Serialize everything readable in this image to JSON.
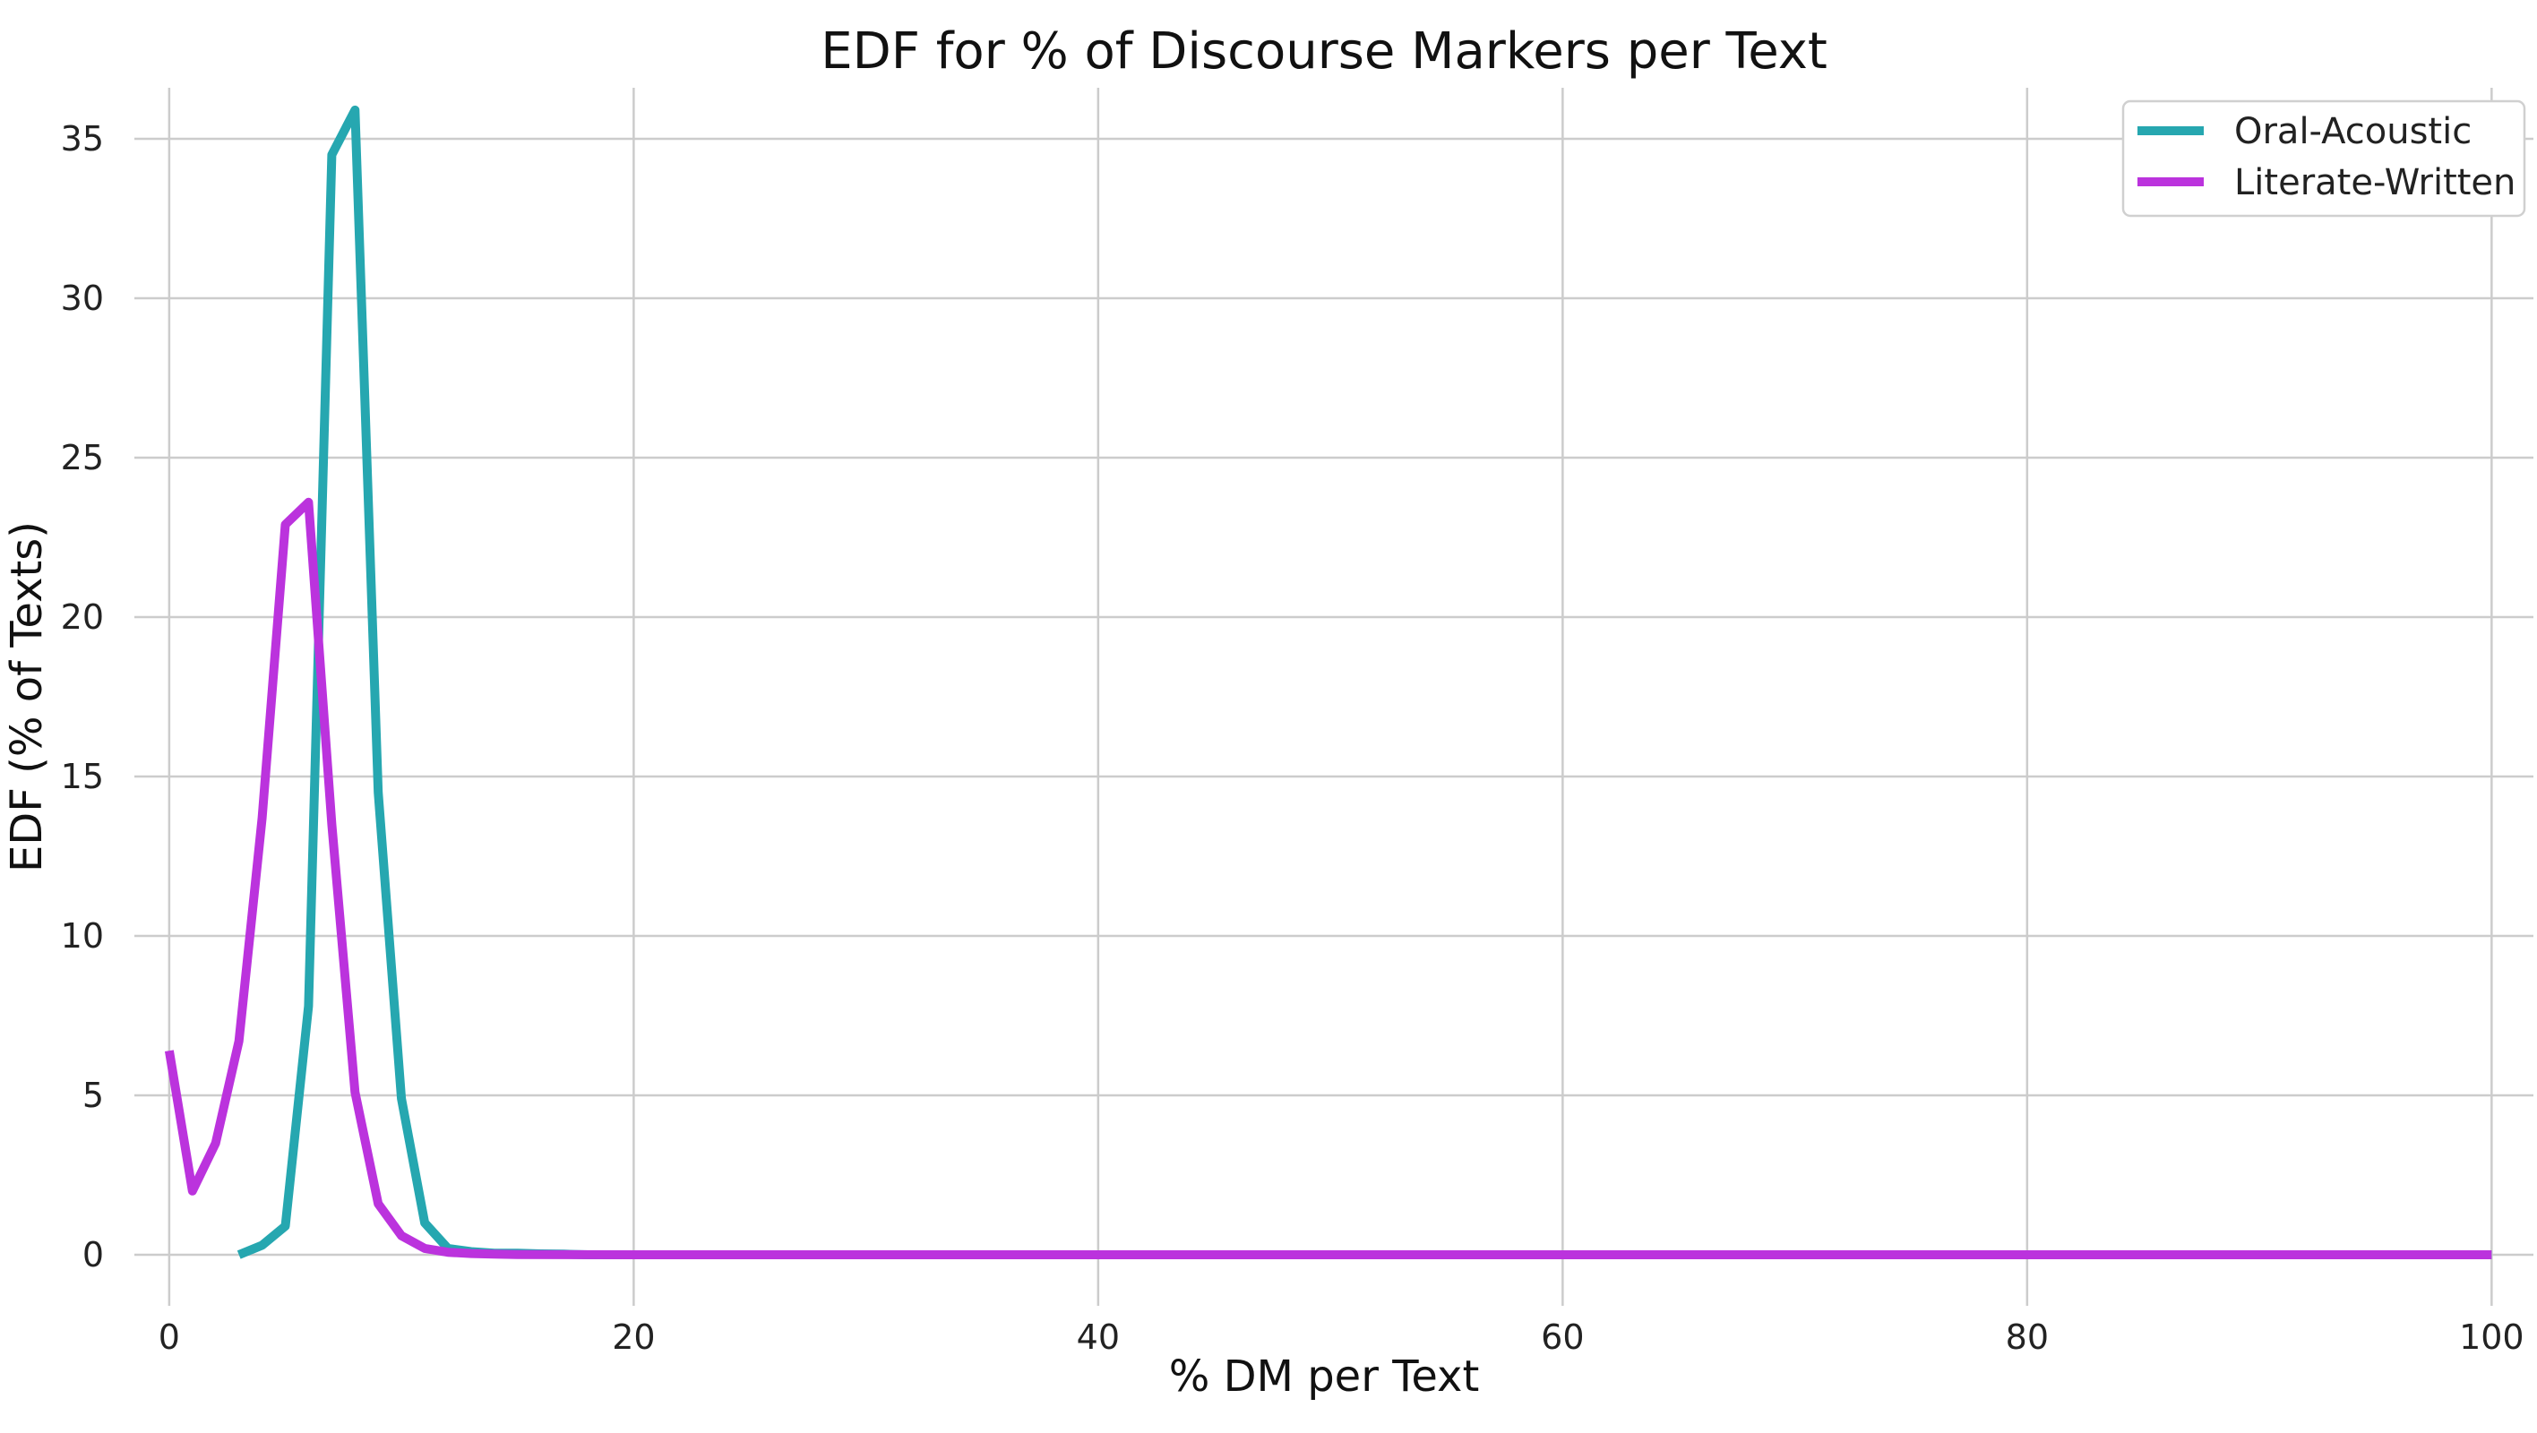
{
  "chart_data": {
    "type": "line",
    "title": "EDF for  % of Discourse Markers per Text",
    "xlabel": "% DM per Text",
    "ylabel": "EDF (% of Texts)",
    "xlim": [
      -1.5,
      101.8
    ],
    "ylim": [
      -1.6,
      36.6
    ],
    "xticks": [
      0,
      20,
      40,
      60,
      80,
      100
    ],
    "yticks": [
      0,
      5,
      10,
      15,
      20,
      25,
      30,
      35
    ],
    "grid": true,
    "legend_position": "top-right",
    "series": [
      {
        "name": "Oral-Acoustic",
        "color": "#26a7b0",
        "x": [
          3,
          4,
          5,
          6,
          7,
          8,
          9,
          10,
          11,
          12,
          13,
          14,
          15,
          16,
          17,
          18,
          20,
          25,
          30,
          40,
          50,
          60,
          70,
          80,
          90,
          100
        ],
        "y": [
          0.0,
          0.3,
          0.9,
          7.8,
          34.5,
          35.9,
          14.5,
          4.9,
          1.0,
          0.2,
          0.1,
          0.05,
          0.05,
          0.03,
          0.02,
          0.0,
          0.0,
          0.0,
          0.0,
          0.0,
          0.0,
          0.0,
          0.0,
          0.0,
          0.0,
          0.0
        ]
      },
      {
        "name": "Literate-Written",
        "color": "#bb33dd",
        "x": [
          0,
          1,
          2,
          3,
          4,
          5,
          6,
          7,
          8,
          9,
          10,
          11,
          12,
          13,
          14,
          15,
          20,
          25,
          30,
          40,
          50,
          60,
          70,
          80,
          90,
          100
        ],
        "y": [
          6.4,
          2.0,
          3.5,
          6.7,
          13.7,
          22.9,
          23.6,
          13.5,
          5.1,
          1.6,
          0.6,
          0.2,
          0.08,
          0.04,
          0.02,
          0.01,
          0.0,
          0.0,
          0.0,
          0.0,
          0.0,
          0.0,
          0.0,
          0.0,
          0.0,
          0.0
        ]
      }
    ]
  }
}
